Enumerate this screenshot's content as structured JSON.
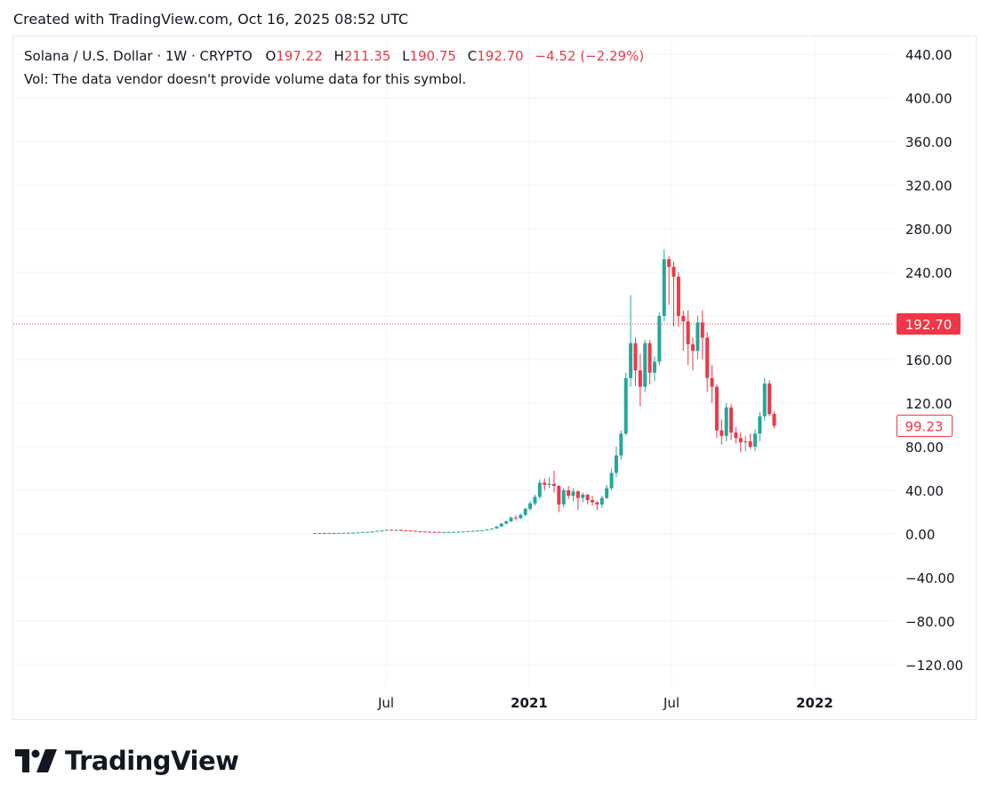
{
  "caption": "Created with TradingView.com, Oct 16, 2025 08:52 UTC",
  "legend": {
    "symbol": "Solana / U.S. Dollar · 1W · CRYPTO",
    "o_label": "O",
    "o_value": "197.22",
    "h_label": "H",
    "h_value": "211.35",
    "l_label": "L",
    "l_value": "190.75",
    "c_label": "C",
    "c_value": "192.70",
    "change": "−4.52 (−2.29%)",
    "volume_note": "Vol: The data vendor doesn't provide volume data for this symbol."
  },
  "logo_text": "TradingView",
  "colors": {
    "up": "#26a69a",
    "down": "#f23645",
    "grid": "#f0f3fa",
    "text": "#131722"
  },
  "chart_data": {
    "type": "candlestick",
    "interval": "1W",
    "y_axis": {
      "min": -120,
      "max": 440,
      "ticks": [
        440,
        400,
        360,
        320,
        280,
        240,
        200,
        160,
        120,
        80,
        40,
        0,
        -40,
        -80,
        -120
      ],
      "tick_labels": [
        "440.00",
        "400.00",
        "360.00",
        "320.00",
        "280.00",
        "240.00",
        "",
        "160.00",
        "120.00",
        "80.00",
        "40.00",
        "0.00",
        "−40.00",
        "−80.00",
        "−120.00"
      ]
    },
    "x_axis": {
      "tick_labels": [
        "Jul",
        "2021",
        "Jul",
        "2022"
      ],
      "bold": [
        false,
        true,
        false,
        true
      ]
    },
    "price_labels": [
      {
        "value": 192.7,
        "text": "192.70",
        "style": "filled"
      },
      {
        "value": 99.23,
        "text": "99.23",
        "style": "outline"
      }
    ],
    "candles": [
      [
        0.8,
        0.9,
        0.7,
        0.8
      ],
      [
        0.8,
        0.9,
        0.7,
        0.85
      ],
      [
        0.85,
        0.95,
        0.75,
        0.8
      ],
      [
        0.8,
        0.9,
        0.7,
        0.85
      ],
      [
        0.85,
        1.0,
        0.8,
        0.9
      ],
      [
        0.9,
        1.0,
        0.85,
        0.95
      ],
      [
        0.95,
        1.1,
        0.9,
        1.0
      ],
      [
        1.0,
        1.2,
        0.95,
        1.1
      ],
      [
        1.1,
        1.3,
        1.0,
        1.2
      ],
      [
        1.2,
        1.5,
        1.1,
        1.4
      ],
      [
        1.4,
        1.8,
        1.3,
        1.7
      ],
      [
        1.7,
        2.0,
        1.5,
        1.9
      ],
      [
        1.9,
        2.4,
        1.8,
        2.2
      ],
      [
        2.2,
        3.0,
        2.1,
        2.8
      ],
      [
        2.8,
        3.4,
        2.6,
        3.2
      ],
      [
        3.2,
        4.0,
        3.0,
        3.8
      ],
      [
        3.8,
        4.2,
        3.1,
        3.5
      ],
      [
        3.5,
        4.0,
        3.2,
        3.7
      ],
      [
        3.7,
        4.1,
        3.0,
        3.3
      ],
      [
        3.3,
        3.6,
        2.8,
        3.0
      ],
      [
        3.0,
        3.4,
        2.6,
        2.8
      ],
      [
        2.8,
        3.0,
        2.2,
        2.4
      ],
      [
        2.4,
        2.6,
        2.0,
        2.2
      ],
      [
        2.2,
        2.4,
        1.8,
        2.0
      ],
      [
        2.0,
        2.3,
        1.7,
        1.9
      ],
      [
        1.9,
        2.2,
        1.6,
        1.8
      ],
      [
        1.8,
        2.0,
        1.5,
        1.6
      ],
      [
        1.6,
        1.9,
        1.4,
        1.7
      ],
      [
        1.7,
        2.0,
        1.5,
        1.8
      ],
      [
        1.8,
        2.1,
        1.6,
        1.9
      ],
      [
        1.9,
        2.2,
        1.7,
        2.0
      ],
      [
        2.0,
        2.4,
        1.8,
        2.2
      ],
      [
        2.2,
        2.8,
        2.0,
        2.6
      ],
      [
        2.6,
        3.0,
        2.4,
        2.8
      ],
      [
        2.8,
        3.3,
        2.6,
        3.1
      ],
      [
        3.1,
        3.6,
        2.9,
        3.4
      ],
      [
        3.4,
        4.5,
        3.2,
        4.2
      ],
      [
        4.2,
        5.2,
        4.0,
        5.0
      ],
      [
        5.0,
        7.0,
        4.8,
        6.8
      ],
      [
        6.8,
        10.0,
        6.5,
        9.5
      ],
      [
        9.5,
        12.5,
        8.5,
        11.5
      ],
      [
        11.5,
        16.0,
        11.0,
        15.0
      ],
      [
        15.0,
        17.0,
        12.5,
        14.5
      ],
      [
        14.5,
        18.5,
        13.5,
        17.5
      ],
      [
        17.5,
        24.0,
        16.5,
        23.0
      ],
      [
        23.0,
        30.0,
        21.5,
        28.0
      ],
      [
        28.0,
        36.0,
        26.0,
        34.0
      ],
      [
        34.0,
        50.0,
        32.0,
        47.0
      ],
      [
        47.0,
        51.0,
        40.0,
        45.0
      ],
      [
        45.0,
        52.0,
        42.0,
        46.0
      ],
      [
        46.0,
        58.0,
        38.0,
        44.0
      ],
      [
        44.0,
        45.0,
        20.0,
        27.0
      ],
      [
        27.0,
        42.0,
        24.0,
        40.0
      ],
      [
        40.0,
        44.0,
        32.0,
        35.0
      ],
      [
        35.0,
        42.0,
        30.0,
        39.0
      ],
      [
        39.0,
        40.0,
        22.0,
        33.0
      ],
      [
        33.0,
        38.0,
        29.0,
        36.0
      ],
      [
        36.0,
        37.0,
        27.0,
        31.0
      ],
      [
        31.0,
        35.0,
        26.0,
        29.0
      ],
      [
        29.0,
        30.0,
        22.0,
        27.0
      ],
      [
        27.0,
        35.0,
        24.0,
        33.0
      ],
      [
        33.0,
        45.0,
        32.0,
        42.0
      ],
      [
        42.0,
        60.0,
        40.0,
        56.0
      ],
      [
        56.0,
        80.0,
        52.0,
        72.0
      ],
      [
        72.0,
        95.0,
        68.0,
        92.0
      ],
      [
        92.0,
        148.0,
        90.0,
        143.0
      ],
      [
        143.0,
        219.0,
        135.0,
        175.0
      ],
      [
        175.0,
        180.0,
        136.0,
        150.0
      ],
      [
        150.0,
        165.0,
        117.0,
        135.0
      ],
      [
        135.0,
        178.0,
        130.0,
        175.0
      ],
      [
        175.0,
        178.0,
        137.0,
        148.0
      ],
      [
        148.0,
        163.0,
        140.0,
        158.0
      ],
      [
        158.0,
        203.0,
        155.0,
        200.0
      ],
      [
        200.0,
        261.0,
        195.0,
        252.0
      ],
      [
        252.0,
        255.0,
        210.0,
        245.0
      ],
      [
        245.0,
        250.0,
        190.0,
        236.0
      ],
      [
        236.0,
        240.0,
        190.0,
        200.0
      ],
      [
        200.0,
        205.0,
        168.0,
        195.0
      ],
      [
        195.0,
        205.0,
        155.0,
        174.0
      ],
      [
        174.0,
        180.0,
        150.0,
        168.0
      ],
      [
        168.0,
        200.0,
        160.0,
        194.0
      ],
      [
        194.0,
        205.0,
        160.0,
        180.0
      ],
      [
        180.0,
        185.0,
        130.0,
        143.0
      ],
      [
        143.0,
        155.0,
        120.0,
        135.0
      ],
      [
        135.0,
        137.0,
        88.0,
        95.0
      ],
      [
        95.0,
        105.0,
        82.0,
        90.0
      ],
      [
        90.0,
        120.0,
        85.0,
        116.0
      ],
      [
        116.0,
        119.0,
        86.0,
        93.0
      ],
      [
        93.0,
        98.0,
        83.0,
        88.0
      ],
      [
        88.0,
        93.0,
        75.0,
        84.0
      ],
      [
        84.0,
        90.0,
        76.0,
        85.0
      ],
      [
        85.0,
        92.0,
        78.0,
        80.0
      ],
      [
        80.0,
        96.0,
        76.0,
        92.0
      ],
      [
        92.0,
        112.0,
        85.0,
        108.0
      ],
      [
        108.0,
        143.0,
        104.0,
        138.0
      ],
      [
        138.0,
        141.0,
        108.0,
        110.0
      ],
      [
        110.0,
        112.0,
        97.0,
        99.23
      ]
    ]
  }
}
